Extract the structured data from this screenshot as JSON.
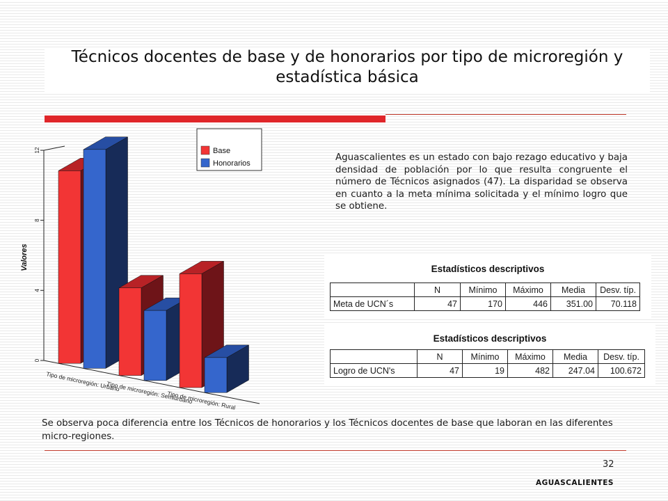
{
  "slide": {
    "title_line1": "Técnicos docentes de base y de honorarios por tipo de microregión y",
    "title_line2": "estadística básica",
    "paragraph": "Aguascalientes es un estado con bajo rezago educativo y baja densidad de población por lo que resulta congruente el número de Técnicos asignados (47). La disparidad se observa en cuanto a la meta mínima solicitada y el mínimo logro que se obtiene.",
    "bottom_text": "Se observa poca diferencia entre los Técnicos de honorarios y los Técnicos docentes de base que laboran en las diferentes micro-regiones.",
    "page_number": "32",
    "footer_label": "AGUASCALIENTES"
  },
  "chart_data": {
    "type": "bar",
    "ylabel": "Valores",
    "ylim": [
      0,
      12
    ],
    "yticks": [
      "0",
      "4",
      "8",
      "12"
    ],
    "categories": [
      "Tipo de microregión: Urbano",
      "Tipo de microregión: Semiurbano",
      "Tipo de microregión: Rural"
    ],
    "series": [
      {
        "name": "Base",
        "values": [
          11,
          5,
          6.5
        ]
      },
      {
        "name": "Honorarios",
        "values": [
          12.5,
          4,
          2
        ]
      }
    ],
    "colors": {
      "base_front": "#f23535",
      "base_top": "#b82226",
      "base_side": "#6e1418",
      "hon_front": "#3566cc",
      "hon_top": "#274ea3",
      "hon_side": "#172b58"
    },
    "legend_position": "top-right"
  },
  "stats_tables": [
    {
      "title": "Estadísticos descriptivos",
      "headers": [
        "",
        "N",
        "Mínimo",
        "Máximo",
        "Media",
        "Desv. típ."
      ],
      "row": [
        "Meta de UCN´s",
        "47",
        "170",
        "446",
        "351.00",
        "70.118"
      ]
    },
    {
      "title": "Estadísticos descriptivos",
      "headers": [
        "",
        "N",
        "Mínimo",
        "Máximo",
        "Media",
        "Desv. típ."
      ],
      "row": [
        "Logro de UCN's",
        "47",
        "19",
        "482",
        "247.04",
        "100.672"
      ]
    }
  ]
}
